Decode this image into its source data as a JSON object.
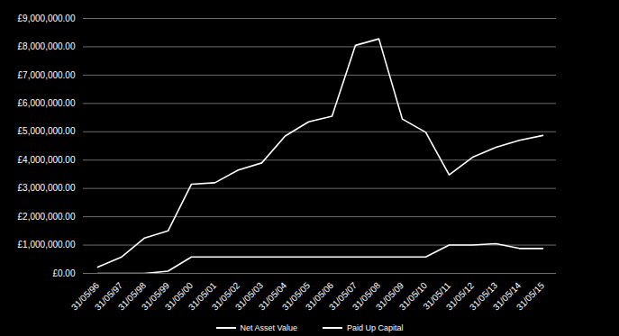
{
  "chart_data": {
    "type": "line",
    "categories": [
      "31/05/96",
      "31/05/97",
      "31/05/98",
      "31/05/99",
      "31/05/00",
      "31/05/01",
      "31/05/02",
      "31/05/03",
      "31/05/04",
      "31/05/05",
      "31/05/06",
      "31/05/07",
      "31/05/08",
      "31/05/09",
      "31/05/10",
      "31/05/11",
      "31/05/12",
      "31/05/13",
      "31/05/14",
      "31/05/15"
    ],
    "series": [
      {
        "name": "Net Asset Value",
        "color": "#ffffff",
        "values": [
          220000,
          570000,
          1250000,
          1500000,
          3150000,
          3200000,
          3650000,
          3900000,
          4850000,
          5350000,
          5550000,
          8050000,
          8280000,
          5450000,
          4980000,
          3480000,
          4100000,
          4450000,
          4700000,
          4870000
        ]
      },
      {
        "name": "Paid Up Capital",
        "color": "#ffffff",
        "values": [
          0,
          0,
          0,
          80000,
          580000,
          580000,
          580000,
          580000,
          580000,
          580000,
          580000,
          580000,
          580000,
          580000,
          580000,
          1000000,
          1000000,
          1050000,
          880000,
          880000
        ]
      }
    ],
    "ylim": [
      0,
      9000000
    ],
    "yticks": [
      {
        "value": 0,
        "label": "£0.00"
      },
      {
        "value": 1000000,
        "label": "£1,000,000.00"
      },
      {
        "value": 2000000,
        "label": "£2,000,000.00"
      },
      {
        "value": 3000000,
        "label": "£3,000,000.00"
      },
      {
        "value": 4000000,
        "label": "£4,000,000.00"
      },
      {
        "value": 5000000,
        "label": "£5,000,000.00"
      },
      {
        "value": 6000000,
        "label": "£6,000,000.00"
      },
      {
        "value": 7000000,
        "label": "£7,000,000.00"
      },
      {
        "value": 8000000,
        "label": "£8,000,000.00"
      },
      {
        "value": 9000000,
        "label": "£9,000,000.00"
      }
    ],
    "grid": true,
    "legend": "bottom"
  }
}
